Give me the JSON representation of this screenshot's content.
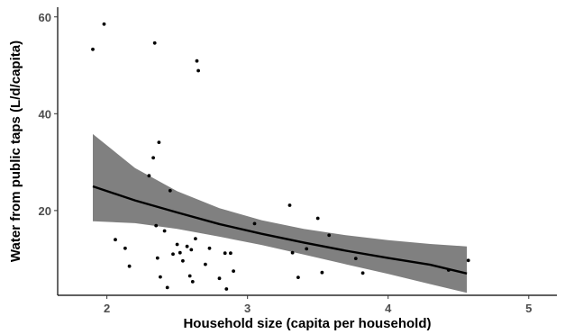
{
  "chart_data": {
    "type": "scatter",
    "title": "",
    "xlabel": "Household size (capita per household)",
    "ylabel": "Water from public taps (L/d/capita)",
    "xlim": [
      1.65,
      5.2
    ],
    "ylim": [
      2.5,
      62
    ],
    "xticks": [
      2,
      3,
      4,
      5
    ],
    "yticks": [
      20,
      40,
      60
    ],
    "grid": false,
    "colors": {
      "points": "#000000",
      "fit_line": "#000000",
      "ribbon": "#808080"
    },
    "points": [
      {
        "x": 1.9,
        "y": 53.3
      },
      {
        "x": 1.98,
        "y": 58.5
      },
      {
        "x": 2.06,
        "y": 14.0
      },
      {
        "x": 2.13,
        "y": 12.2
      },
      {
        "x": 2.16,
        "y": 8.5
      },
      {
        "x": 2.3,
        "y": 27.2
      },
      {
        "x": 2.33,
        "y": 30.9
      },
      {
        "x": 2.34,
        "y": 54.6
      },
      {
        "x": 2.35,
        "y": 16.9
      },
      {
        "x": 2.37,
        "y": 34.1
      },
      {
        "x": 2.36,
        "y": 10.2
      },
      {
        "x": 2.38,
        "y": 6.3
      },
      {
        "x": 2.41,
        "y": 15.8
      },
      {
        "x": 2.43,
        "y": 4.1
      },
      {
        "x": 2.45,
        "y": 24.1
      },
      {
        "x": 2.47,
        "y": 11.0
      },
      {
        "x": 2.5,
        "y": 13.0
      },
      {
        "x": 2.52,
        "y": 11.3
      },
      {
        "x": 2.54,
        "y": 9.6
      },
      {
        "x": 2.57,
        "y": 12.6
      },
      {
        "x": 2.59,
        "y": 6.5
      },
      {
        "x": 2.6,
        "y": 11.9
      },
      {
        "x": 2.61,
        "y": 5.3
      },
      {
        "x": 2.63,
        "y": 14.2
      },
      {
        "x": 2.64,
        "y": 50.9
      },
      {
        "x": 2.65,
        "y": 48.9
      },
      {
        "x": 2.7,
        "y": 8.9
      },
      {
        "x": 2.73,
        "y": 12.2
      },
      {
        "x": 2.8,
        "y": 6.0
      },
      {
        "x": 2.84,
        "y": 11.2
      },
      {
        "x": 2.85,
        "y": 3.8
      },
      {
        "x": 2.88,
        "y": 11.2
      },
      {
        "x": 2.9,
        "y": 7.5
      },
      {
        "x": 3.05,
        "y": 17.3
      },
      {
        "x": 3.3,
        "y": 21.1
      },
      {
        "x": 3.32,
        "y": 11.3
      },
      {
        "x": 3.36,
        "y": 6.2
      },
      {
        "x": 3.42,
        "y": 12.1
      },
      {
        "x": 3.5,
        "y": 18.4
      },
      {
        "x": 3.53,
        "y": 7.2
      },
      {
        "x": 3.58,
        "y": 14.9
      },
      {
        "x": 3.77,
        "y": 10.1
      },
      {
        "x": 3.82,
        "y": 7.1
      },
      {
        "x": 4.43,
        "y": 7.7
      },
      {
        "x": 4.57,
        "y": 9.7
      }
    ],
    "fit_line": {
      "x": [
        1.9,
        2.2,
        2.5,
        2.8,
        3.1,
        3.4,
        3.7,
        4.0,
        4.3,
        4.56
      ],
      "y": [
        25.0,
        22.1,
        19.6,
        17.2,
        15.2,
        13.4,
        11.7,
        10.2,
        8.8,
        7.0
      ]
    },
    "confidence_band": {
      "x": [
        1.9,
        2.2,
        2.5,
        2.8,
        3.1,
        3.4,
        3.7,
        4.0,
        4.3,
        4.56
      ],
      "lower": [
        17.8,
        17.4,
        16.2,
        14.6,
        12.9,
        10.9,
        8.9,
        6.9,
        4.8,
        3.0
      ],
      "upper": [
        35.8,
        28.8,
        24.0,
        20.5,
        18.0,
        16.2,
        14.9,
        13.9,
        13.1,
        12.6
      ]
    }
  }
}
